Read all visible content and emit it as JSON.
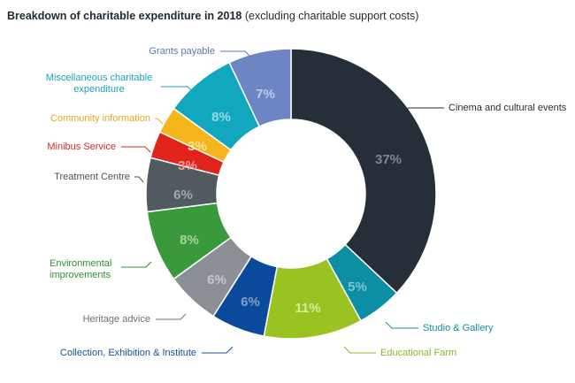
{
  "title": {
    "main": "Breakdown of charitable expenditure in 2018",
    "sub": "(excluding charitable support costs)"
  },
  "chart_data": {
    "type": "pie",
    "variant": "donut",
    "title": "Breakdown of charitable expenditure in 2018 (excluding charitable support costs)",
    "slices": [
      {
        "label": "Cinema and cultural events",
        "value": 37,
        "display": "37%",
        "color": "#262e38",
        "text_color": "#7d8893",
        "label_color": "#262e38"
      },
      {
        "label": "Studio & Gallery",
        "value": 5,
        "display": "5%",
        "color": "#0d8fa3",
        "text_color": "#7fc5cf",
        "label_color": "#138fa3"
      },
      {
        "label": "Educational Farm",
        "value": 11,
        "display": "11%",
        "color": "#9ac321",
        "text_color": "#d9ec9e",
        "label_color": "#8ab82a"
      },
      {
        "label": "Collection, Exhibition & Institute",
        "value": 6,
        "display": "6%",
        "color": "#0b4a9a",
        "text_color": "#7f9fca",
        "label_color": "#1b4f9a"
      },
      {
        "label": "Heritage advice",
        "value": 6,
        "display": "6%",
        "color": "#8a9095",
        "text_color": "#c6cacd",
        "label_color": "#6a7178"
      },
      {
        "label": "Environmental improvements",
        "value": 8,
        "display": "8%",
        "color": "#3a9a3b",
        "text_color": "#a4d3a1",
        "label_color": "#2e8f33"
      },
      {
        "label": "Treatment Centre",
        "value": 6,
        "display": "6%",
        "color": "#515961",
        "text_color": "#a2a8ad",
        "label_color": "#4a525a"
      },
      {
        "label": "Minibus Service",
        "value": 3,
        "display": "3%",
        "color": "#e0231b",
        "text_color": "#f39a93",
        "label_color": "#d42a1f"
      },
      {
        "label": "Community information",
        "value": 3,
        "display": "3%",
        "color": "#f5b51c",
        "text_color": "#fbe09a",
        "label_color": "#eba81c"
      },
      {
        "label": "Miscellaneous charitable expenditure",
        "value": 8,
        "display": "8%",
        "color": "#11a8bf",
        "text_color": "#98dbe5",
        "label_color": "#19a3b7"
      },
      {
        "label": "Grants payable",
        "value": 7,
        "display": "7%",
        "color": "#6d86c3",
        "text_color": "#c0cbe6",
        "label_color": "#5c77b8"
      }
    ]
  }
}
